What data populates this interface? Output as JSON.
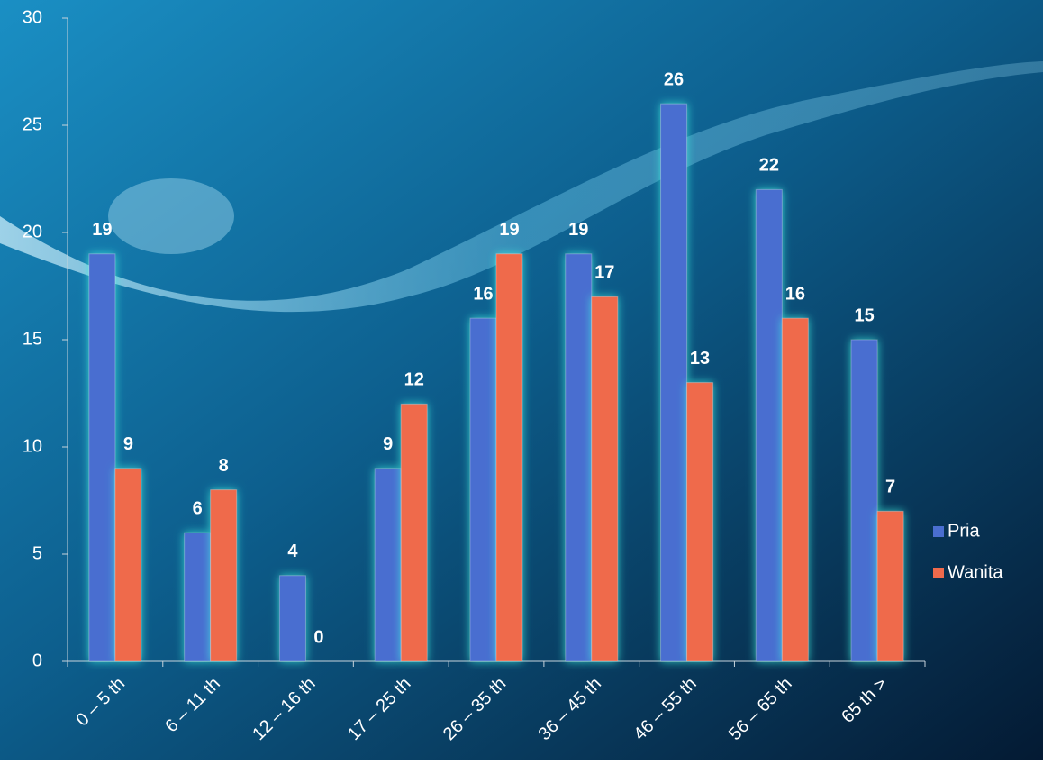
{
  "chart_data": {
    "type": "bar",
    "categories": [
      "0 – 5 th",
      "6 – 11 th",
      "12 – 16 th",
      "17 – 25 th",
      "26 – 35 th",
      "36 – 45 th",
      "46 – 55 th",
      "56 – 65 th",
      "65 th >"
    ],
    "series": [
      {
        "name": "Pria",
        "color": "#4a6ed0",
        "values": [
          19,
          6,
          4,
          9,
          16,
          19,
          26,
          22,
          15
        ]
      },
      {
        "name": "Wanita",
        "color": "#ef6a4c",
        "values": [
          9,
          8,
          0,
          12,
          19,
          17,
          13,
          16,
          7
        ]
      }
    ],
    "ylim": [
      0,
      30
    ],
    "yticks": [
      0,
      5,
      10,
      15,
      20,
      25,
      30
    ],
    "legend": "right"
  }
}
